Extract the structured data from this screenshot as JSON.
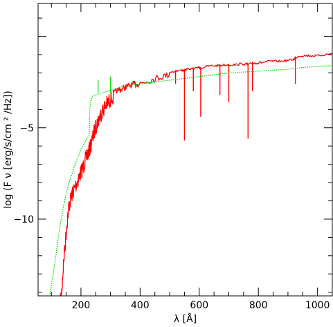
{
  "chart_data": {
    "type": "line",
    "xlabel": "λ [Å]",
    "ylabel": "log (F ν [erg/s/cm ² /Hz])",
    "xlim": [
      55,
      1050
    ],
    "ylim": [
      -14.2,
      1.8
    ],
    "x_ticks": [
      200,
      400,
      600,
      800,
      1000
    ],
    "y_ticks": [
      -5,
      -10
    ],
    "x_tick_labels": [
      "200",
      "400",
      "600",
      "800",
      "1000"
    ],
    "y_tick_labels": [
      "−5",
      "−10"
    ],
    "grid": false,
    "legend": "none",
    "series": [
      {
        "color": "#ff0000",
        "style": "solid",
        "x": [
          130,
          135,
          140,
          145,
          150,
          155,
          160,
          165,
          170,
          175,
          180,
          185,
          190,
          195,
          200,
          205,
          210,
          215,
          220,
          225,
          230,
          235,
          240,
          245,
          250,
          255,
          260,
          265,
          270,
          275,
          280,
          285,
          290,
          295,
          300,
          310,
          320,
          330,
          340,
          350,
          360,
          370,
          380,
          390,
          400,
          420,
          440,
          460,
          480,
          500,
          520,
          540,
          550,
          560,
          580,
          600,
          605,
          620,
          640,
          660,
          680,
          700,
          720,
          740,
          760,
          765,
          780,
          790,
          800,
          820,
          840,
          860,
          880,
          900,
          920,
          925,
          940,
          960,
          980,
          1000,
          1020,
          1050
        ],
        "y": [
          -14.1,
          -13.5,
          -12.2,
          -11.2,
          -10.3,
          -9.4,
          -8.8,
          -8.5,
          -8.2,
          -8.0,
          -7.8,
          -7.6,
          -7.4,
          -7.2,
          -7.0,
          -6.8,
          -6.6,
          -6.3,
          -6.1,
          -5.9,
          -5.7,
          -5.4,
          -5.1,
          -4.8,
          -4.5,
          -4.3,
          -4.1,
          -3.9,
          -3.7,
          -3.6,
          -3.4,
          -3.3,
          -3.2,
          -3.1,
          -3.0,
          -2.9,
          -2.8,
          -2.75,
          -2.7,
          -2.6,
          -2.55,
          -2.5,
          -2.45,
          -2.45,
          -2.4,
          -2.3,
          -2.2,
          -2.1,
          -2.0,
          -1.9,
          -1.85,
          -1.8,
          -1.8,
          -1.75,
          -1.7,
          -1.65,
          -1.7,
          -1.6,
          -1.55,
          -1.55,
          -1.5,
          -1.5,
          -1.5,
          -1.45,
          -1.45,
          -1.5,
          -1.4,
          -1.4,
          -1.4,
          -1.35,
          -1.3,
          -1.3,
          -1.3,
          -1.25,
          -1.2,
          -1.1,
          -1.0,
          -1.0,
          -1.0,
          -1.0,
          -0.95,
          -0.9
        ],
        "absorption_lines": [
          {
            "x": 550,
            "y": -5.7
          },
          {
            "x": 605,
            "y": -4.4
          },
          {
            "x": 765,
            "y": -5.6
          },
          {
            "x": 700,
            "y": -3.6
          },
          {
            "x": 670,
            "y": -3.2
          },
          {
            "x": 925,
            "y": -2.6
          },
          {
            "x": 580,
            "y": -3.0
          },
          {
            "x": 520,
            "y": -2.6
          },
          {
            "x": 780,
            "y": -3.0
          }
        ]
      },
      {
        "color": "#00dd00",
        "style": "dotted",
        "x": [
          95,
          100,
          110,
          120,
          130,
          140,
          150,
          160,
          170,
          180,
          190,
          200,
          210,
          220,
          225,
          228,
          230,
          235,
          240,
          250,
          260,
          270,
          280,
          290,
          300,
          320,
          340,
          360,
          380,
          400,
          450,
          500,
          550,
          600,
          650,
          700,
          750,
          800,
          850,
          900,
          950,
          1000,
          1050
        ],
        "y": [
          -14.1,
          -13.6,
          -12.6,
          -11.4,
          -10.3,
          -9.4,
          -8.6,
          -8.0,
          -7.5,
          -7.0,
          -6.6,
          -6.2,
          -5.9,
          -5.6,
          -5.5,
          -5.4,
          -3.9,
          -3.4,
          -3.3,
          -3.2,
          -3.15,
          -3.1,
          -3.05,
          -3.0,
          -2.95,
          -2.85,
          -2.75,
          -2.7,
          -2.65,
          -2.6,
          -2.5,
          -2.4,
          -2.3,
          -2.2,
          -2.1,
          -2.0,
          -1.95,
          -1.9,
          -1.85,
          -1.8,
          -1.7,
          -1.65,
          -1.6
        ]
      }
    ]
  }
}
